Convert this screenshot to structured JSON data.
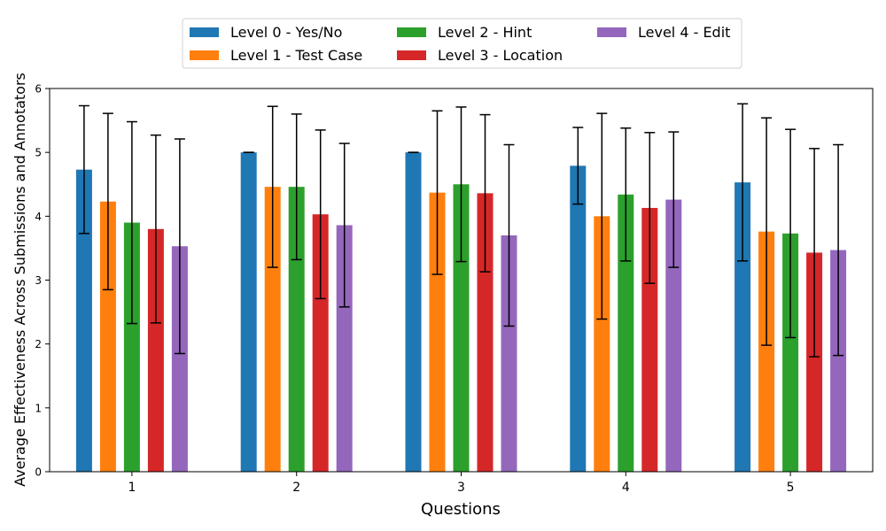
{
  "chart_data": {
    "type": "bar",
    "title": "",
    "xlabel": "Questions",
    "ylabel": "Average Effectiveness Across Submissions and Annotators",
    "categories": [
      "1",
      "2",
      "3",
      "4",
      "5"
    ],
    "ylim": [
      0,
      6
    ],
    "yticks": [
      "0",
      "1",
      "2",
      "3",
      "4",
      "5",
      "6"
    ],
    "grid": false,
    "legend_position": "top-center",
    "series": [
      {
        "name": "Level 0 - Yes/No",
        "color": "#1f77b4",
        "values": [
          4.73,
          5.0,
          5.0,
          4.79,
          4.53
        ],
        "errors": [
          1.0,
          0.0,
          0.0,
          0.6,
          1.23
        ]
      },
      {
        "name": "Level 1 - Test Case",
        "color": "#ff7f0e",
        "values": [
          4.23,
          4.46,
          4.37,
          4.0,
          3.76
        ],
        "errors": [
          1.38,
          1.26,
          1.28,
          1.61,
          1.78
        ]
      },
      {
        "name": "Level 2 - Hint",
        "color": "#2ca02c",
        "values": [
          3.9,
          4.46,
          4.5,
          4.34,
          3.73
        ],
        "errors": [
          1.58,
          1.14,
          1.21,
          1.04,
          1.63
        ]
      },
      {
        "name": "Level 3 - Location",
        "color": "#d62728",
        "values": [
          3.8,
          4.03,
          4.36,
          4.13,
          3.43
        ],
        "errors": [
          1.47,
          1.32,
          1.23,
          1.18,
          1.63
        ]
      },
      {
        "name": "Level 4 - Edit",
        "color": "#9467bd",
        "values": [
          3.53,
          3.86,
          3.7,
          4.26,
          3.47
        ],
        "errors": [
          1.68,
          1.28,
          1.42,
          1.06,
          1.65
        ]
      }
    ]
  }
}
